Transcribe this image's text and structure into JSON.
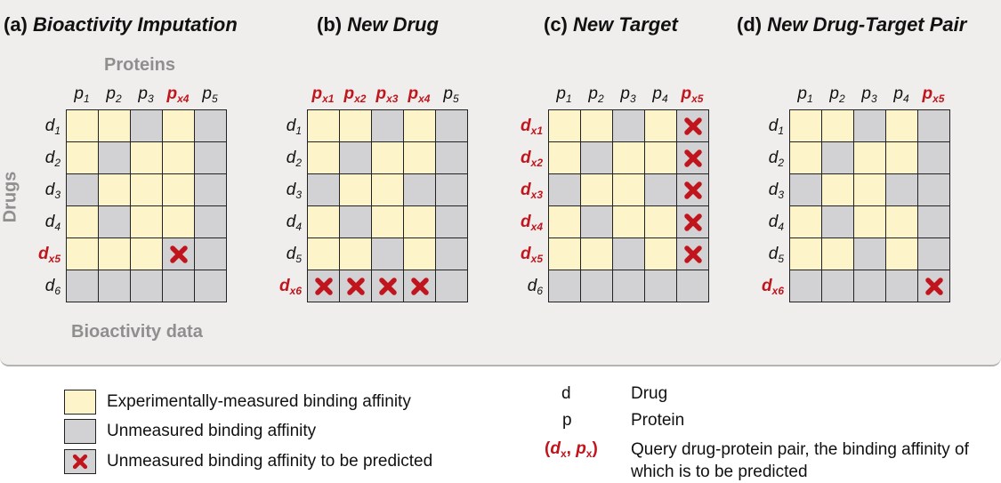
{
  "panels": [
    {
      "id": "a",
      "num": "(a)",
      "name": "Bioactivity Imputation",
      "cols": [
        {
          "b": "p",
          "s": "1",
          "q": false
        },
        {
          "b": "p",
          "s": "2",
          "q": false
        },
        {
          "b": "p",
          "s": "3",
          "q": false
        },
        {
          "b": "p",
          "s": "x4",
          "q": true
        },
        {
          "b": "p",
          "s": "5",
          "q": false
        }
      ],
      "rows": [
        {
          "b": "d",
          "s": "1",
          "q": false
        },
        {
          "b": "d",
          "s": "2",
          "q": false
        },
        {
          "b": "d",
          "s": "3",
          "q": false
        },
        {
          "b": "d",
          "s": "4",
          "q": false
        },
        {
          "b": "d",
          "s": "x5",
          "q": true
        },
        {
          "b": "d",
          "s": "6",
          "q": false
        }
      ],
      "cells": [
        "YYGYG",
        "YGYYG",
        "GYYYG",
        "YGYYG",
        "YYYXG",
        "GGGGG"
      ]
    },
    {
      "id": "b",
      "num": "(b)",
      "name": "New Drug",
      "cols": [
        {
          "b": "p",
          "s": "x1",
          "q": true
        },
        {
          "b": "p",
          "s": "x2",
          "q": true
        },
        {
          "b": "p",
          "s": "x3",
          "q": true
        },
        {
          "b": "p",
          "s": "x4",
          "q": true
        },
        {
          "b": "p",
          "s": "5",
          "q": false
        }
      ],
      "rows": [
        {
          "b": "d",
          "s": "1",
          "q": false
        },
        {
          "b": "d",
          "s": "2",
          "q": false
        },
        {
          "b": "d",
          "s": "3",
          "q": false
        },
        {
          "b": "d",
          "s": "4",
          "q": false
        },
        {
          "b": "d",
          "s": "5",
          "q": false
        },
        {
          "b": "d",
          "s": "x6",
          "q": true
        }
      ],
      "cells": [
        "YYGYG",
        "YGYYG",
        "GYYGG",
        "YGYYG",
        "YYGYG",
        "XXXXG"
      ]
    },
    {
      "id": "c",
      "num": "(c)",
      "name": "New Target",
      "cols": [
        {
          "b": "p",
          "s": "1",
          "q": false
        },
        {
          "b": "p",
          "s": "2",
          "q": false
        },
        {
          "b": "p",
          "s": "3",
          "q": false
        },
        {
          "b": "p",
          "s": "4",
          "q": false
        },
        {
          "b": "p",
          "s": "x5",
          "q": true
        }
      ],
      "rows": [
        {
          "b": "d",
          "s": "x1",
          "q": true
        },
        {
          "b": "d",
          "s": "x2",
          "q": true
        },
        {
          "b": "d",
          "s": "x3",
          "q": true
        },
        {
          "b": "d",
          "s": "x4",
          "q": true
        },
        {
          "b": "d",
          "s": "x5",
          "q": true
        },
        {
          "b": "d",
          "s": "6",
          "q": false
        }
      ],
      "cells": [
        "YYGYX",
        "YGYYX",
        "GYYGX",
        "YGYYX",
        "YYGYX",
        "GGGGG"
      ]
    },
    {
      "id": "d",
      "num": "(d)",
      "name": "New Drug-Target Pair",
      "cols": [
        {
          "b": "p",
          "s": "1",
          "q": false
        },
        {
          "b": "p",
          "s": "2",
          "q": false
        },
        {
          "b": "p",
          "s": "3",
          "q": false
        },
        {
          "b": "p",
          "s": "4",
          "q": false
        },
        {
          "b": "p",
          "s": "x5",
          "q": true
        }
      ],
      "rows": [
        {
          "b": "d",
          "s": "1",
          "q": false
        },
        {
          "b": "d",
          "s": "2",
          "q": false
        },
        {
          "b": "d",
          "s": "3",
          "q": false
        },
        {
          "b": "d",
          "s": "4",
          "q": false
        },
        {
          "b": "d",
          "s": "5",
          "q": false
        },
        {
          "b": "d",
          "s": "x6",
          "q": true
        }
      ],
      "cells": [
        "YYGYG",
        "YGYYG",
        "GYYGG",
        "YGYYG",
        "YYGYG",
        "GGGGX"
      ]
    }
  ],
  "labels": {
    "proteins": "Proteins",
    "drugs": "Drugs",
    "bioactivity": "Bioactivity data"
  },
  "legend": [
    {
      "type": "measured",
      "text": "Experimentally-measured binding affinity"
    },
    {
      "type": "unmeasured",
      "text": "Unmeasured binding affinity"
    },
    {
      "type": "predict",
      "text": "Unmeasured binding affinity to be predicted"
    }
  ],
  "definitions": {
    "d_sym": "d",
    "d_text": "Drug",
    "p_sym": "p",
    "p_text": "Protein",
    "pair_open": "(",
    "pair_d": "d",
    "pair_dsub": "x",
    "pair_comma": ", ",
    "pair_p": "p",
    "pair_psub": "x",
    "pair_close": ")",
    "pair_text": "Query drug-protein pair, the binding affinity of which is to be predicted"
  },
  "colors": {
    "measured": "#fdf5c9",
    "unmeasured": "#d2d2d4",
    "query": "#c0151d",
    "panel_bg": "#efeeec"
  }
}
